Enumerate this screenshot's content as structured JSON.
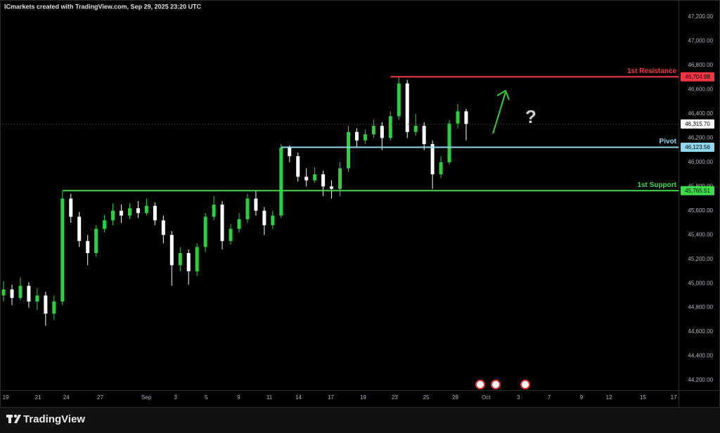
{
  "header": "ICmarkets created with TradingView.com, Sep 29, 2025 23:20 UTC",
  "footer": "TradingView",
  "chart_data": {
    "type": "candlestick",
    "annotation": "?",
    "up_color": "#2ad13c",
    "down_color": "#ffffff",
    "grid": false,
    "xlim": [
      -0.35,
      41.6
    ],
    "ylim": [
      44119,
      47339
    ],
    "xticks": [
      {
        "value": 0,
        "label": "19"
      },
      {
        "value": 2,
        "label": "21"
      },
      {
        "value": 3.75,
        "label": "24"
      },
      {
        "value": 5.85,
        "label": "27"
      },
      {
        "value": 8.7,
        "label": "Sep"
      },
      {
        "value": 10.5,
        "label": "3"
      },
      {
        "value": 12.4,
        "label": "5"
      },
      {
        "value": 14.4,
        "label": "9"
      },
      {
        "value": 16.3,
        "label": "11"
      },
      {
        "value": 18.1,
        "label": "14"
      },
      {
        "value": 20.1,
        "label": "17"
      },
      {
        "value": 22.1,
        "label": "19"
      },
      {
        "value": 24.05,
        "label": "23"
      },
      {
        "value": 26,
        "label": "25"
      },
      {
        "value": 27.8,
        "label": "28"
      },
      {
        "value": 29.7,
        "label": "Oct"
      },
      {
        "value": 31.7,
        "label": "3"
      },
      {
        "value": 33.6,
        "label": "7"
      },
      {
        "value": 35.6,
        "label": "9"
      },
      {
        "value": 37.3,
        "label": "12"
      },
      {
        "value": 39.4,
        "label": "15"
      },
      {
        "value": 41.3,
        "label": "17"
      }
    ],
    "yticks": [
      {
        "value": 44200,
        "label": "44,200.00"
      },
      {
        "value": 44400,
        "label": "44,400.00"
      },
      {
        "value": 44600,
        "label": "44,600.00"
      },
      {
        "value": 44800,
        "label": "44,800.00"
      },
      {
        "value": 45000,
        "label": "45,000.00"
      },
      {
        "value": 45200,
        "label": "45,200.00"
      },
      {
        "value": 45400,
        "label": "45,400.00"
      },
      {
        "value": 45600,
        "label": "45,600.00"
      },
      {
        "value": 45800,
        "label": "45,800.00"
      },
      {
        "value": 46000,
        "label": "46,000.00"
      },
      {
        "value": 46200,
        "label": "46,200.00"
      },
      {
        "value": 46400,
        "label": "46,400.00"
      },
      {
        "value": 46600,
        "label": "46,600.00"
      },
      {
        "value": 46800,
        "label": "46,800.00"
      },
      {
        "value": 47000,
        "label": "47,000.00"
      },
      {
        "value": 47200,
        "label": "47,200.00"
      }
    ],
    "levels": [
      {
        "name": "1st Resistance",
        "value": 46704.98,
        "label": "46,704.98",
        "color": "#f23645",
        "start_x": 23.79
      },
      {
        "name": "Pivot",
        "value": 46123.56,
        "label": "46,123.56",
        "color": "#8fd8ee",
        "start_x": 17.03
      },
      {
        "name": "1st Support",
        "value": 45765.51,
        "label": "45,765.51",
        "color": "#3ddc4a",
        "start_x": 3.51
      }
    ],
    "last_price": {
      "value": 46315.7,
      "label": "46,315.70"
    },
    "x": [
      -0.13,
      0.39,
      0.91,
      1.43,
      1.95,
      2.47,
      2.99,
      3.51,
      4.03,
      4.55,
      5.07,
      5.59,
      6.11,
      6.63,
      7.15,
      7.67,
      8.19,
      8.71,
      9.23,
      9.75,
      10.27,
      10.79,
      11.31,
      11.83,
      12.35,
      12.87,
      13.39,
      13.91,
      14.43,
      14.95,
      15.47,
      15.99,
      16.51,
      17.03,
      17.55,
      18.07,
      18.59,
      19.11,
      19.63,
      20.15,
      20.67,
      21.19,
      21.71,
      22.23,
      22.75,
      23.27,
      23.79,
      24.31,
      24.83,
      25.35,
      25.87,
      26.39,
      26.91,
      27.43,
      27.95,
      28.47
    ],
    "open": [
      44900,
      44950,
      44880,
      44980,
      44850,
      44900,
      44750,
      44850,
      45700,
      45550,
      45350,
      45250,
      45450,
      45520,
      45600,
      45560,
      45620,
      45580,
      45640,
      45520,
      45400,
      45150,
      45250,
      45100,
      45300,
      45550,
      45650,
      45350,
      45450,
      45530,
      45700,
      45600,
      45480,
      45560,
      46120,
      46050,
      45880,
      45850,
      45900,
      45800,
      45780,
      45950,
      46250,
      46180,
      46230,
      46300,
      46200,
      46380,
      46650,
      46250,
      46300,
      46150,
      45900,
      46000,
      46320,
      46420
    ],
    "high": [
      45020,
      44990,
      45050,
      45010,
      44960,
      44930,
      44900,
      45760,
      45740,
      45590,
      45400,
      45480,
      45560,
      45660,
      45650,
      45660,
      45680,
      45700,
      45670,
      45560,
      45430,
      45300,
      45280,
      45330,
      45580,
      45720,
      45680,
      45490,
      45580,
      45740,
      45760,
      45630,
      45600,
      46150,
      46140,
      46080,
      45950,
      45960,
      45930,
      45850,
      46000,
      46300,
      46280,
      46270,
      46350,
      46330,
      46420,
      46704.98,
      46680,
      46400,
      46330,
      46180,
      46050,
      46350,
      46480,
      46440
    ],
    "low": [
      44850,
      44820,
      44860,
      44800,
      44780,
      44650,
      44700,
      44820,
      45500,
      45300,
      45150,
      45220,
      45420,
      45480,
      45500,
      45530,
      45540,
      45560,
      45480,
      45330,
      44980,
      45100,
      44990,
      45060,
      45260,
      45520,
      45280,
      45320,
      45420,
      45500,
      45560,
      45400,
      45450,
      45540,
      46000,
      45840,
      45800,
      45830,
      45720,
      45700,
      45720,
      45920,
      46120,
      46150,
      46200,
      46100,
      46180,
      46350,
      46200,
      46220,
      46100,
      45780,
      45870,
      45980,
      46280,
      46180
    ],
    "close": [
      44950,
      44880,
      44980,
      44850,
      44900,
      44750,
      44850,
      45700,
      45550,
      45350,
      45250,
      45450,
      45520,
      45600,
      45560,
      45620,
      45580,
      45640,
      45520,
      45400,
      45150,
      45250,
      45100,
      45300,
      45550,
      45650,
      45350,
      45450,
      45530,
      45700,
      45600,
      45480,
      45560,
      46120,
      46050,
      45880,
      45850,
      45900,
      45800,
      45780,
      45950,
      46250,
      46180,
      46230,
      46300,
      46200,
      46380,
      46650,
      46250,
      46300,
      46150,
      45900,
      46000,
      46320,
      46420,
      46315.7
    ]
  }
}
